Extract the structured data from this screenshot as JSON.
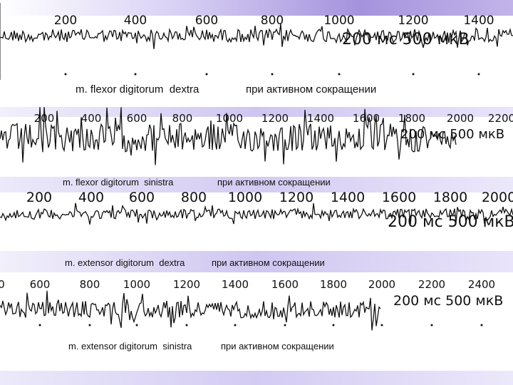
{
  "colors": {
    "band_top": "#9a8ad6",
    "band_mid": "#c9bff0",
    "band_light": "#ecebfb",
    "trace": "#111111",
    "text": "#111111"
  },
  "chart_data": [
    {
      "type": "line",
      "title": "",
      "x_ticks": [
        "200",
        "400",
        "600",
        "800",
        "1000",
        "1200",
        "1400"
      ],
      "scale_label": "200 мс 500 мкВ",
      "caption_muscle": "m. flexor digitorum  dextra",
      "caption_state": "при активном сокращении",
      "grid": false
    },
    {
      "type": "line",
      "title": "",
      "x_ticks": [
        "200",
        "400",
        "600",
        "800",
        "1000",
        "1200",
        "1400",
        "1600",
        "1800",
        "2000",
        "2200"
      ],
      "scale_label": "200 мс 500 мкВ",
      "caption_muscle": "m. flexor digitorum  sinistra",
      "caption_state": "при активном сокращении",
      "grid": false
    },
    {
      "type": "line",
      "title": "",
      "x_ticks": [
        "200",
        "400",
        "600",
        "800",
        "1000",
        "1200",
        "1400",
        "1600",
        "1800",
        "2000"
      ],
      "scale_label": "200 мс 500 мкВ",
      "caption_muscle": "m. extensor digitorum  dextra",
      "caption_state": "при активном сокращении",
      "grid": false
    },
    {
      "type": "line",
      "title": "",
      "x_ticks": [
        "0",
        "600",
        "800",
        "1000",
        "1200",
        "1400",
        "1600",
        "1800",
        "2000",
        "2200",
        "2400"
      ],
      "scale_label": "200 мс 500 мкВ",
      "caption_muscle": "m. extensor digitorum  sinistra",
      "caption_state": "при активном сокращении",
      "grid": false
    }
  ]
}
